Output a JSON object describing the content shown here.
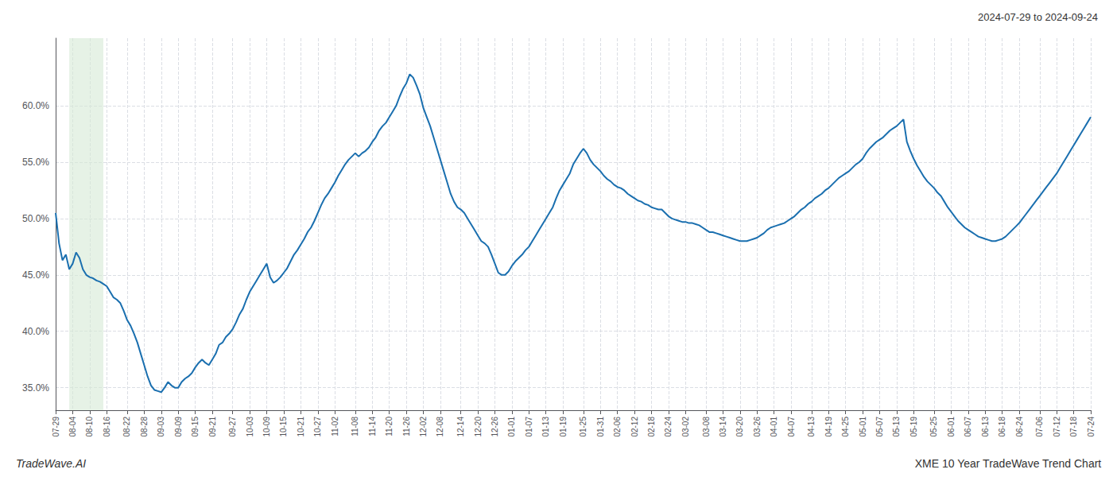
{
  "chart_data": {
    "type": "line",
    "title": "2024-07-29 to 2024-09-24",
    "annotations": [
      "TradeWave.AI",
      "XME 10 Year TradeWave Trend Chart"
    ],
    "color": "#1a6faf",
    "grid": true,
    "ylim": [
      0.33,
      0.66
    ],
    "yticks": [
      {
        "value": 0.35,
        "label": "35.0%"
      },
      {
        "value": 0.4,
        "label": "40.0%"
      },
      {
        "value": 0.45,
        "label": "45.0%"
      },
      {
        "value": 0.5,
        "label": "50.0%"
      },
      {
        "value": 0.55,
        "label": "55.0%"
      },
      {
        "value": 0.6,
        "label": "60.0%"
      }
    ],
    "shade": {
      "from": 4,
      "to": 14,
      "color": "#d6ead6"
    },
    "categories": [
      "07-29",
      null,
      null,
      null,
      null,
      "08-04",
      null,
      null,
      null,
      null,
      "08-10",
      null,
      null,
      null,
      null,
      "08-16",
      null,
      null,
      null,
      null,
      null,
      "08-22",
      null,
      null,
      null,
      null,
      "08-28",
      null,
      null,
      null,
      null,
      "09-03",
      null,
      null,
      null,
      null,
      "09-09",
      null,
      null,
      null,
      null,
      "09-15",
      null,
      null,
      null,
      null,
      "09-21",
      null,
      null,
      null,
      null,
      null,
      "09-27",
      null,
      null,
      null,
      null,
      "10-03",
      null,
      null,
      null,
      null,
      "10-09",
      null,
      null,
      null,
      null,
      "10-15",
      null,
      null,
      null,
      null,
      "10-21",
      null,
      null,
      null,
      null,
      "10-27",
      null,
      null,
      null,
      null,
      "11-02",
      null,
      null,
      null,
      null,
      null,
      "11-08",
      null,
      null,
      null,
      null,
      "11-14",
      null,
      null,
      null,
      null,
      "11-20",
      null,
      null,
      null,
      null,
      "11-26",
      null,
      null,
      null,
      null,
      "12-02",
      null,
      null,
      null,
      null,
      "12-08",
      null,
      null,
      null,
      null,
      null,
      "12-14",
      null,
      null,
      null,
      null,
      "12-20",
      null,
      null,
      null,
      null,
      "12-26",
      null,
      null,
      null,
      null,
      "01-01",
      null,
      null,
      null,
      null,
      "01-07",
      null,
      null,
      null,
      null,
      "01-13",
      null,
      null,
      null,
      null,
      "01-19",
      null,
      null,
      null,
      null,
      null,
      "01-25",
      null,
      null,
      null,
      null,
      "01-31",
      null,
      null,
      null,
      null,
      "02-06",
      null,
      null,
      null,
      null,
      "02-12",
      null,
      null,
      null,
      null,
      "02-18",
      null,
      null,
      null,
      null,
      "02-24",
      null,
      null,
      null,
      null,
      "03-02",
      null,
      null,
      null,
      null,
      null,
      "03-08",
      null,
      null,
      null,
      null,
      "03-14",
      null,
      null,
      null,
      null,
      "03-20",
      null,
      null,
      null,
      null,
      "03-26",
      null,
      null,
      null,
      null,
      "04-01",
      null,
      null,
      null,
      null,
      "04-07",
      null,
      null,
      null,
      null,
      null,
      "04-13",
      null,
      null,
      null,
      null,
      "04-19",
      null,
      null,
      null,
      null,
      "04-25",
      null,
      null,
      null,
      null,
      "05-01",
      null,
      null,
      null,
      null,
      "05-07",
      null,
      null,
      null,
      null,
      "05-13",
      null,
      null,
      null,
      null,
      "05-19",
      null,
      null,
      null,
      null,
      null,
      "05-25",
      null,
      null,
      null,
      null,
      "06-01",
      null,
      null,
      null,
      null,
      "06-07",
      null,
      null,
      null,
      null,
      "06-13",
      null,
      null,
      null,
      null,
      "06-18",
      null,
      null,
      null,
      null,
      "06-24",
      null,
      null,
      null,
      null,
      null,
      "07-06",
      null,
      null,
      null,
      null,
      "07-12",
      null,
      null,
      null,
      null,
      "07-18",
      null,
      null,
      null,
      null,
      "07-24"
    ],
    "values": [
      0.505,
      0.478,
      0.463,
      0.468,
      0.455,
      0.46,
      0.47,
      0.465,
      0.455,
      0.45,
      0.448,
      0.447,
      0.445,
      0.444,
      0.442,
      0.44,
      0.435,
      0.43,
      0.428,
      0.425,
      0.418,
      0.41,
      0.405,
      0.398,
      0.39,
      0.38,
      0.37,
      0.36,
      0.352,
      0.348,
      0.347,
      0.346,
      0.35,
      0.355,
      0.352,
      0.35,
      0.35,
      0.355,
      0.358,
      0.36,
      0.363,
      0.368,
      0.372,
      0.375,
      0.372,
      0.37,
      0.375,
      0.38,
      0.388,
      0.39,
      0.395,
      0.398,
      0.402,
      0.408,
      0.415,
      0.42,
      0.428,
      0.435,
      0.44,
      0.445,
      0.45,
      0.455,
      0.46,
      0.448,
      0.443,
      0.445,
      0.448,
      0.452,
      0.456,
      0.462,
      0.468,
      0.472,
      0.477,
      0.482,
      0.488,
      0.492,
      0.498,
      0.505,
      0.512,
      0.518,
      0.522,
      0.527,
      0.532,
      0.538,
      0.543,
      0.548,
      0.552,
      0.555,
      0.558,
      0.555,
      0.558,
      0.56,
      0.563,
      0.568,
      0.572,
      0.578,
      0.582,
      0.585,
      0.59,
      0.595,
      0.6,
      0.608,
      0.615,
      0.62,
      0.628,
      0.625,
      0.618,
      0.61,
      0.598,
      0.59,
      0.582,
      0.572,
      0.562,
      0.552,
      0.542,
      0.532,
      0.522,
      0.515,
      0.51,
      0.508,
      0.505,
      0.5,
      0.495,
      0.49,
      0.485,
      0.48,
      0.478,
      0.475,
      0.468,
      0.46,
      0.452,
      0.45,
      0.45,
      0.453,
      0.458,
      0.462,
      0.465,
      0.468,
      0.472,
      0.475,
      0.48,
      0.485,
      0.49,
      0.495,
      0.5,
      0.505,
      0.51,
      0.518,
      0.525,
      0.53,
      0.535,
      0.54,
      0.548,
      0.553,
      0.558,
      0.562,
      0.558,
      0.552,
      0.548,
      0.545,
      0.542,
      0.538,
      0.535,
      0.533,
      0.53,
      0.528,
      0.527,
      0.525,
      0.522,
      0.52,
      0.518,
      0.516,
      0.515,
      0.513,
      0.512,
      0.51,
      0.509,
      0.508,
      0.508,
      0.505,
      0.502,
      0.5,
      0.499,
      0.498,
      0.497,
      0.497,
      0.496,
      0.496,
      0.495,
      0.494,
      0.492,
      0.49,
      0.488,
      0.488,
      0.487,
      0.486,
      0.485,
      0.484,
      0.483,
      0.482,
      0.481,
      0.48,
      0.48,
      0.48,
      0.481,
      0.482,
      0.483,
      0.485,
      0.487,
      0.49,
      0.492,
      0.493,
      0.494,
      0.495,
      0.496,
      0.498,
      0.5,
      0.502,
      0.505,
      0.508,
      0.51,
      0.513,
      0.515,
      0.518,
      0.52,
      0.522,
      0.525,
      0.527,
      0.53,
      0.533,
      0.536,
      0.538,
      0.54,
      0.542,
      0.545,
      0.548,
      0.55,
      0.553,
      0.558,
      0.562,
      0.565,
      0.568,
      0.57,
      0.572,
      0.575,
      0.578,
      0.58,
      0.582,
      0.585,
      0.588,
      0.568,
      0.56,
      0.553,
      0.547,
      0.542,
      0.537,
      0.533,
      0.53,
      0.527,
      0.523,
      0.52,
      0.515,
      0.51,
      0.506,
      0.502,
      0.498,
      0.495,
      0.492,
      0.49,
      0.488,
      0.486,
      0.484,
      0.483,
      0.482,
      0.481,
      0.48,
      0.48,
      0.481,
      0.482,
      0.484,
      0.487,
      0.49,
      0.493,
      0.496,
      0.5,
      0.504,
      0.508,
      0.512,
      0.516,
      0.52,
      0.524,
      0.528,
      0.532,
      0.536,
      0.54,
      0.545,
      0.55,
      0.555,
      0.56,
      0.565,
      0.57,
      0.575,
      0.58,
      0.585,
      0.59
    ]
  }
}
